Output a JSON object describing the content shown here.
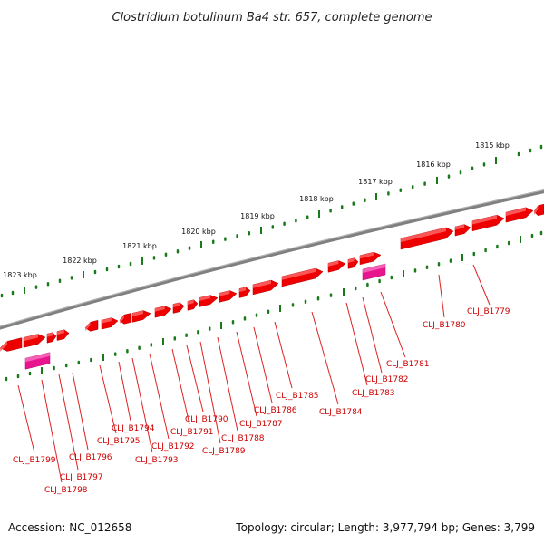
{
  "title": "Clostridium botulinum Ba4 str. 657, complete genome",
  "footer": {
    "accession": "Accession: NC_012658",
    "topology": "Topology: circular; Length: 3,977,794 bp; Genes: 3,799"
  },
  "colors": {
    "gene": "#ee0000",
    "gene_highlight": "#ff6a6a",
    "rna": "#e8158f",
    "label": "#cc0000",
    "ticks": "#1a7a1a",
    "genome_line": "#808080"
  },
  "scale_labels": [
    "1815 kbp",
    "1816 kbp",
    "1817 kbp",
    "1818 kbp",
    "1819 kbp",
    "1820 kbp",
    "1821 kbp",
    "1822 kbp",
    "1823 kbp"
  ],
  "gene_labels": [
    "CLJ_B1779",
    "CLJ_B1780",
    "CLJ_B1781",
    "CLJ_B1782",
    "CLJ_B1783",
    "CLJ_B1784",
    "CLJ_B1785",
    "CLJ_B1786",
    "CLJ_B1787",
    "CLJ_B1788",
    "CLJ_B1789",
    "CLJ_B1790",
    "CLJ_B1791",
    "CLJ_B1792",
    "CLJ_B1793",
    "CLJ_B1794",
    "CLJ_B1795",
    "CLJ_B1796",
    "CLJ_B1797",
    "CLJ_B1798",
    "CLJ_B1799"
  ]
}
